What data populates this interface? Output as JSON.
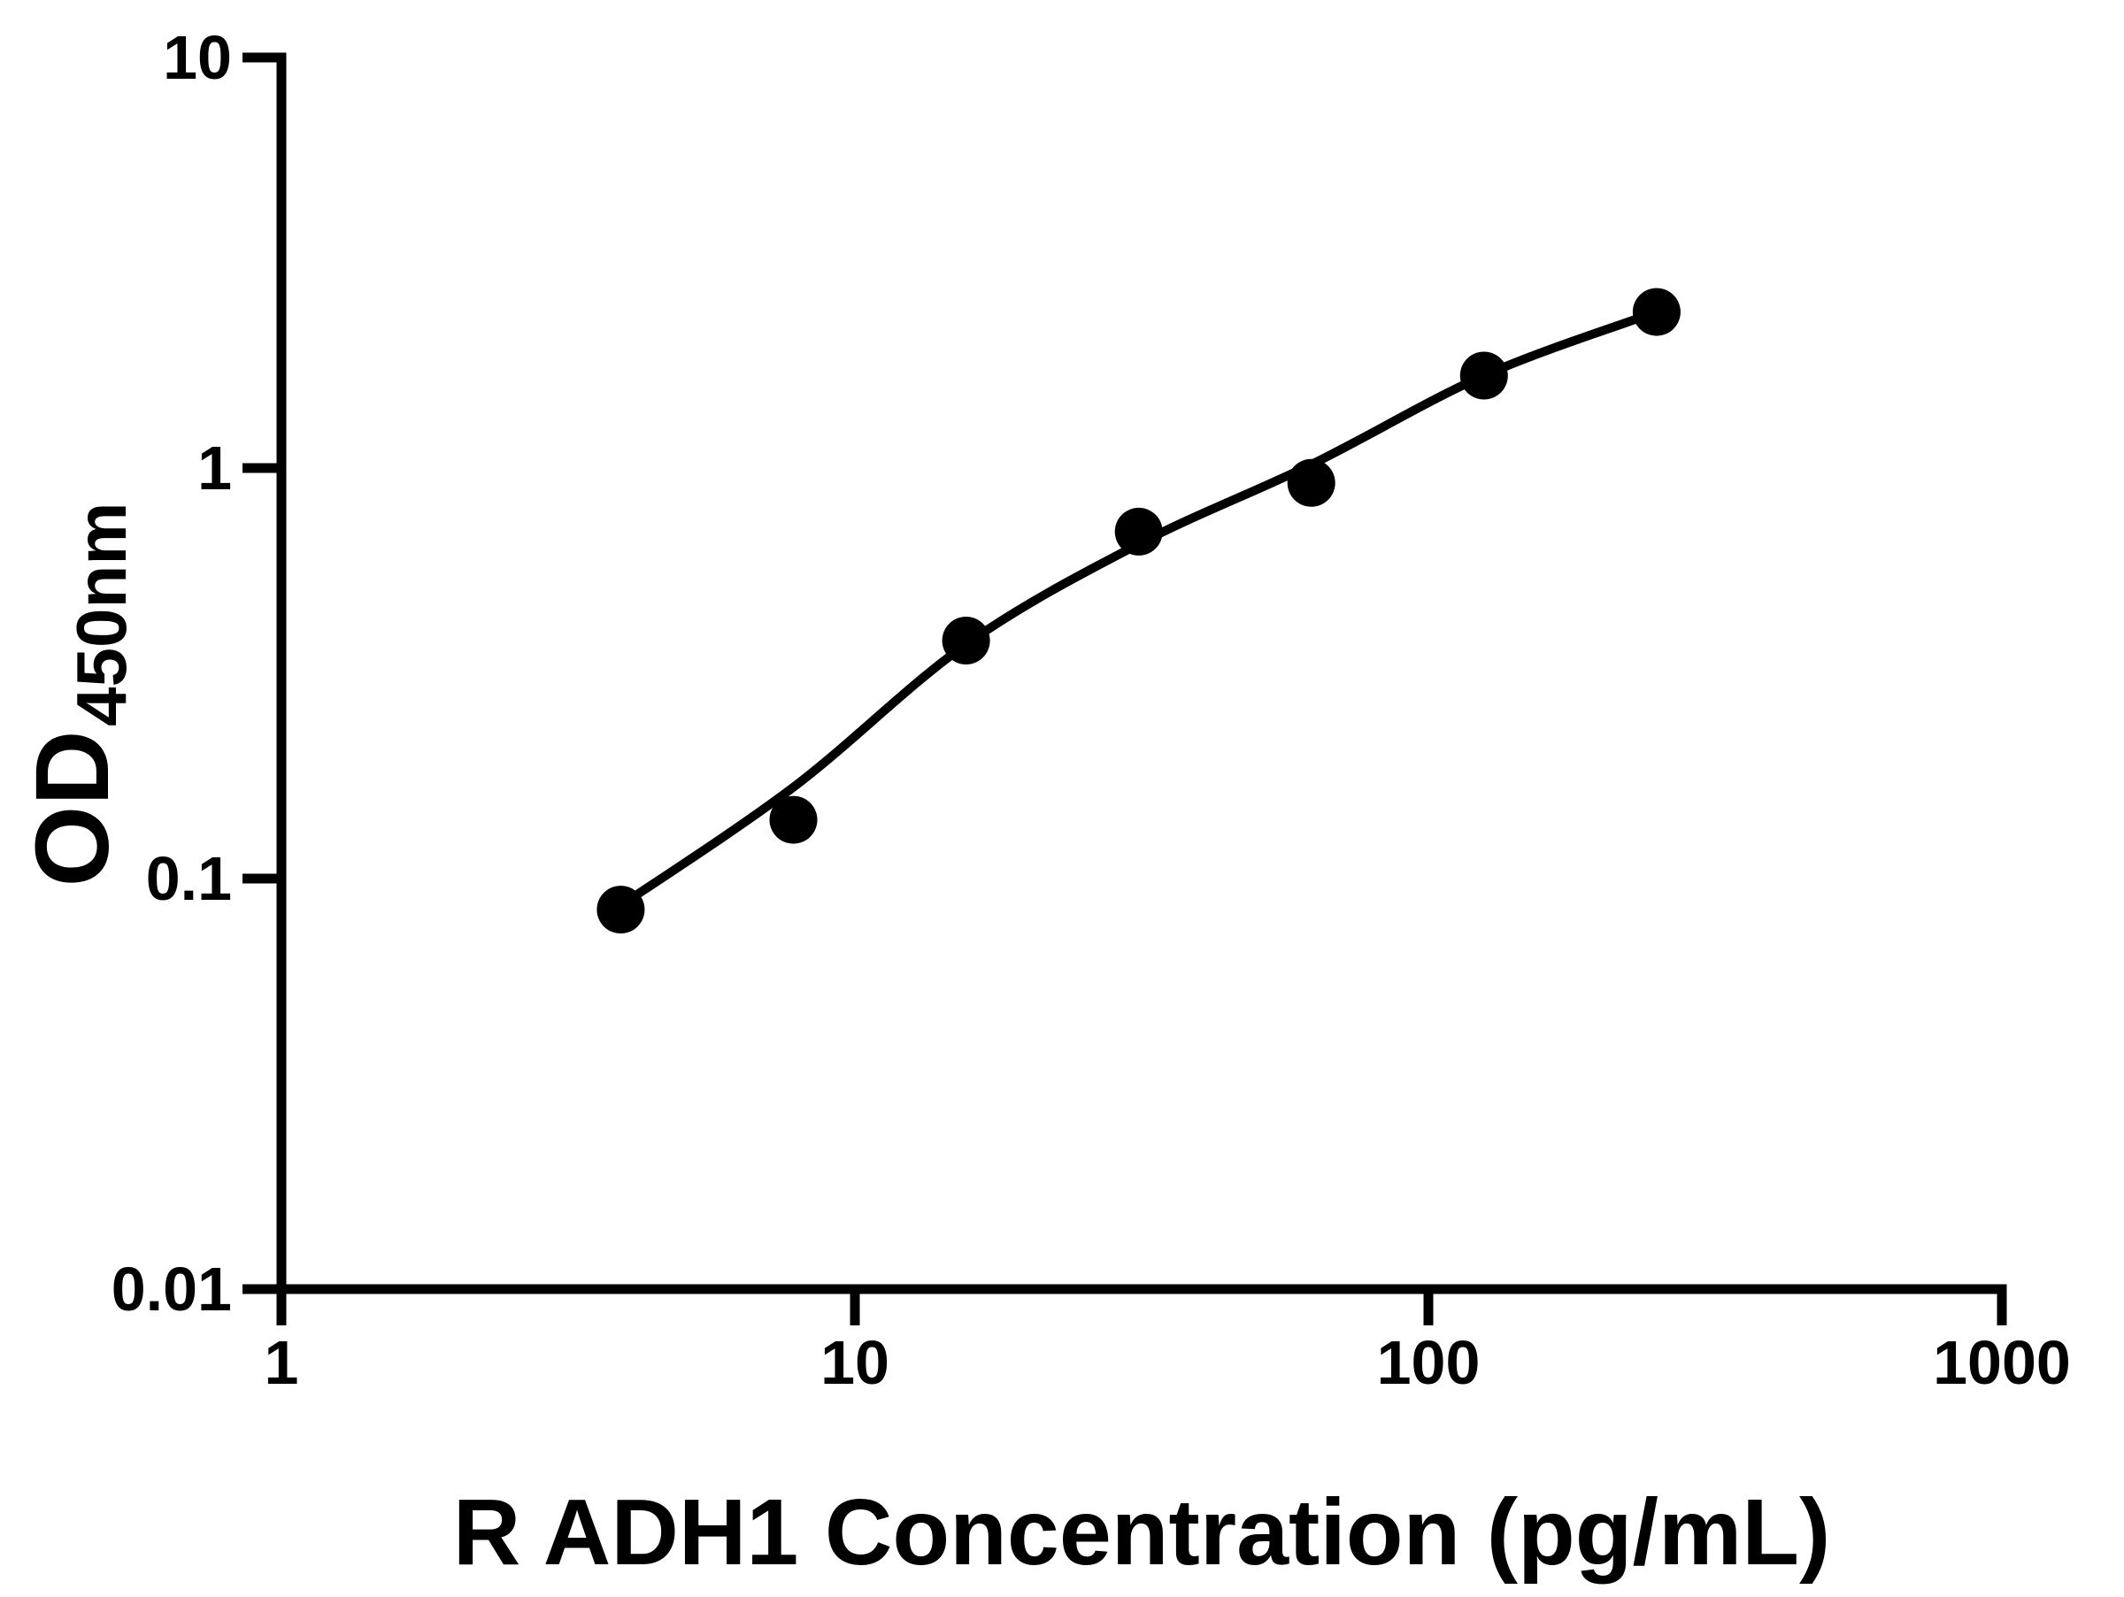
{
  "figure": {
    "x_title": "R ADH1 Concentration (pg/mL)",
    "y_title_main": "OD",
    "y_title_sub": "450nm",
    "background_color": "#ffffff",
    "foreground_color": "#000000"
  },
  "chart_data": {
    "type": "scatter",
    "title": "",
    "xlabel": "R ADH1 Concentration (pg/mL)",
    "ylabel": "OD450nm",
    "x_scale": "log",
    "y_scale": "log",
    "xlim": [
      1,
      1000
    ],
    "ylim": [
      0.01,
      10
    ],
    "grid": false,
    "legend": "none",
    "x_ticks": [
      {
        "value": 1,
        "label": "1"
      },
      {
        "value": 10,
        "label": "10"
      },
      {
        "value": 100,
        "label": "100"
      },
      {
        "value": 1000,
        "label": "1000"
      }
    ],
    "y_ticks": [
      {
        "value": 10,
        "label": "10"
      },
      {
        "value": 1,
        "label": "1"
      },
      {
        "value": 0.1,
        "label": "0.1"
      },
      {
        "value": 0.01,
        "label": "0.01"
      }
    ],
    "series": [
      {
        "name": "standard-curve-points",
        "marker": "filled-circle",
        "color": "#000000",
        "points": [
          {
            "x": 3.906,
            "y": 0.084
          },
          {
            "x": 7.813,
            "y": 0.139
          },
          {
            "x": 15.625,
            "y": 0.38
          },
          {
            "x": 31.25,
            "y": 0.7
          },
          {
            "x": 62.5,
            "y": 0.92
          },
          {
            "x": 125,
            "y": 1.68
          },
          {
            "x": 250,
            "y": 2.4
          }
        ]
      }
    ],
    "fit_curve": {
      "name": "four-parameter-logistic-fit",
      "color": "#000000",
      "samples": [
        {
          "x": 3.906,
          "y": 0.086
        },
        {
          "x": 7.813,
          "y": 0.167
        },
        {
          "x": 15.625,
          "y": 0.372
        },
        {
          "x": 31.25,
          "y": 0.653
        },
        {
          "x": 62.5,
          "y": 1.02
        },
        {
          "x": 125,
          "y": 1.68
        },
        {
          "x": 250,
          "y": 2.4
        }
      ]
    }
  }
}
